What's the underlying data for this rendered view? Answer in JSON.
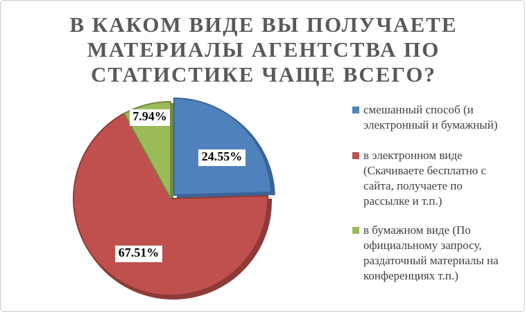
{
  "chart_data": {
    "type": "pie",
    "title_lines": [
      "В КАКОМ ВИДЕ ВЫ ПОЛУЧАЕТЕ",
      "МАТЕРИАЛЫ АГЕНТСТВА ПО",
      "СТАТИСТИКЕ ЧАЩЕ ВСЕГО?"
    ],
    "legend_placement": "right",
    "slices": [
      {
        "label_lines": [
          "смешанный способ (и",
          "электронный и бумажный)"
        ],
        "value": 24.55,
        "data_label": "24.55%",
        "color": "#4F81BD",
        "edge_color": "#3A6496"
      },
      {
        "label_lines": [
          "в электронном виде",
          "(Скачиваете бесплатно с",
          "сайта, получаете по",
          "рассылке и т.п.)"
        ],
        "value": 67.51,
        "data_label": "67.51%",
        "color": "#C0504D",
        "edge_color": "#8E3B38"
      },
      {
        "label_lines": [
          "в бумажном виде (По",
          "официальному запросу,",
          "раздаточный материалы на",
          "конференциях т.п.)"
        ],
        "value": 7.94,
        "data_label": "7.94%",
        "color": "#9BBB59",
        "edge_color": "#728A42"
      }
    ]
  }
}
